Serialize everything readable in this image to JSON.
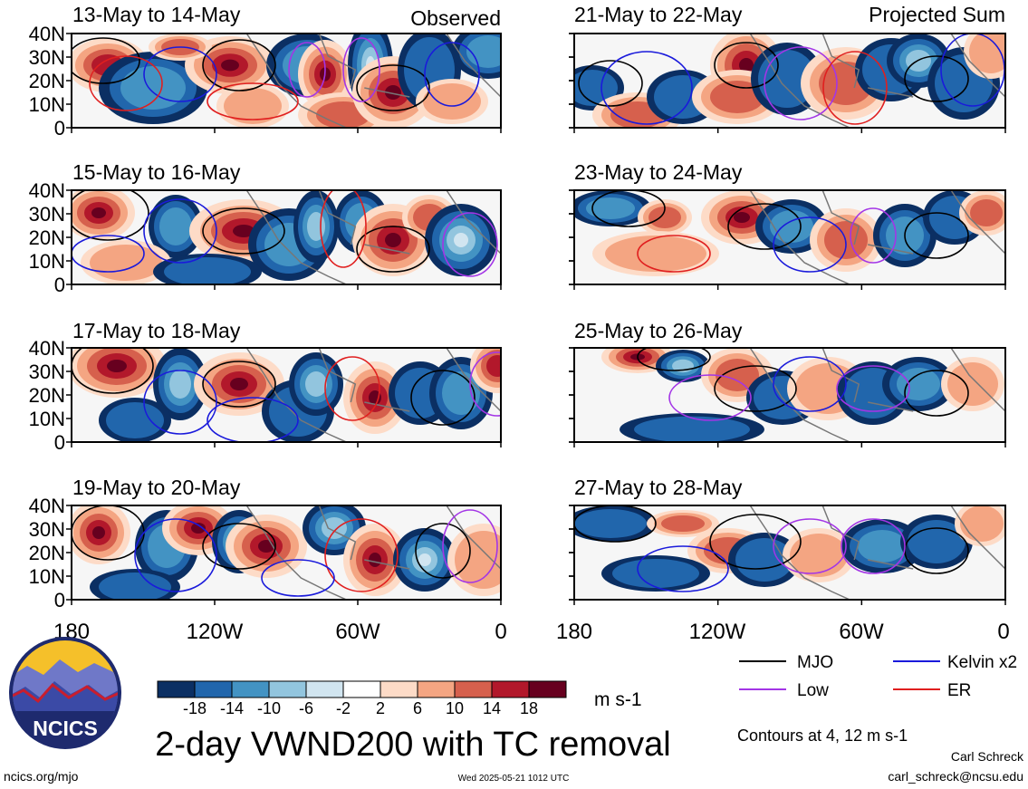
{
  "figure": {
    "title": "2-day VWND200 with TC removal",
    "footer_left": "ncics.org/mjo",
    "timestamp": "Wed 2025-05-21 1012 UTC",
    "author_name": "Carl Schreck",
    "author_email": "carl_schreck@ncsu.edu",
    "logo_text": "NCICS",
    "contour_note": "Contours at 4, 12 m s-1"
  },
  "columns": {
    "left_label": "Observed",
    "right_label": "Projected Sum"
  },
  "panels_left": [
    {
      "title": "13-May to 14-May"
    },
    {
      "title": "15-May to 16-May"
    },
    {
      "title": "17-May to 18-May"
    },
    {
      "title": "19-May to 20-May"
    }
  ],
  "panels_right": [
    {
      "title": "21-May to 22-May"
    },
    {
      "title": "23-May to 24-May"
    },
    {
      "title": "25-May to 26-May"
    },
    {
      "title": "27-May to 28-May"
    }
  ],
  "colorbar": {
    "unit": "m s-1",
    "ticks": [
      "-18",
      "-14",
      "-10",
      "-6",
      "-2",
      "2",
      "6",
      "10",
      "14",
      "18"
    ],
    "colors": [
      "#0b2f63",
      "#2166ac",
      "#4393c3",
      "#92c5de",
      "#d1e5f0",
      "#ffffff",
      "#fddbc7",
      "#f4a582",
      "#d6604d",
      "#b2182b",
      "#67001f"
    ]
  },
  "legend": [
    {
      "label": "MJO",
      "color": "#000000"
    },
    {
      "label": "Kelvin x2",
      "color": "#1a1adb"
    },
    {
      "label": "Low",
      "color": "#a335e6"
    },
    {
      "label": "ER",
      "color": "#e01f1f"
    }
  ],
  "chart_data": {
    "type": "heatmap",
    "variable": "VWND200",
    "units": "m s-1",
    "x_tick_labels": [
      "180",
      "120W",
      "60W",
      "0"
    ],
    "y_tick_labels": [
      "0",
      "10N",
      "20N",
      "30N",
      "40N"
    ],
    "lon_range": [
      -180,
      0
    ],
    "lat_range": [
      0,
      40
    ]
  }
}
